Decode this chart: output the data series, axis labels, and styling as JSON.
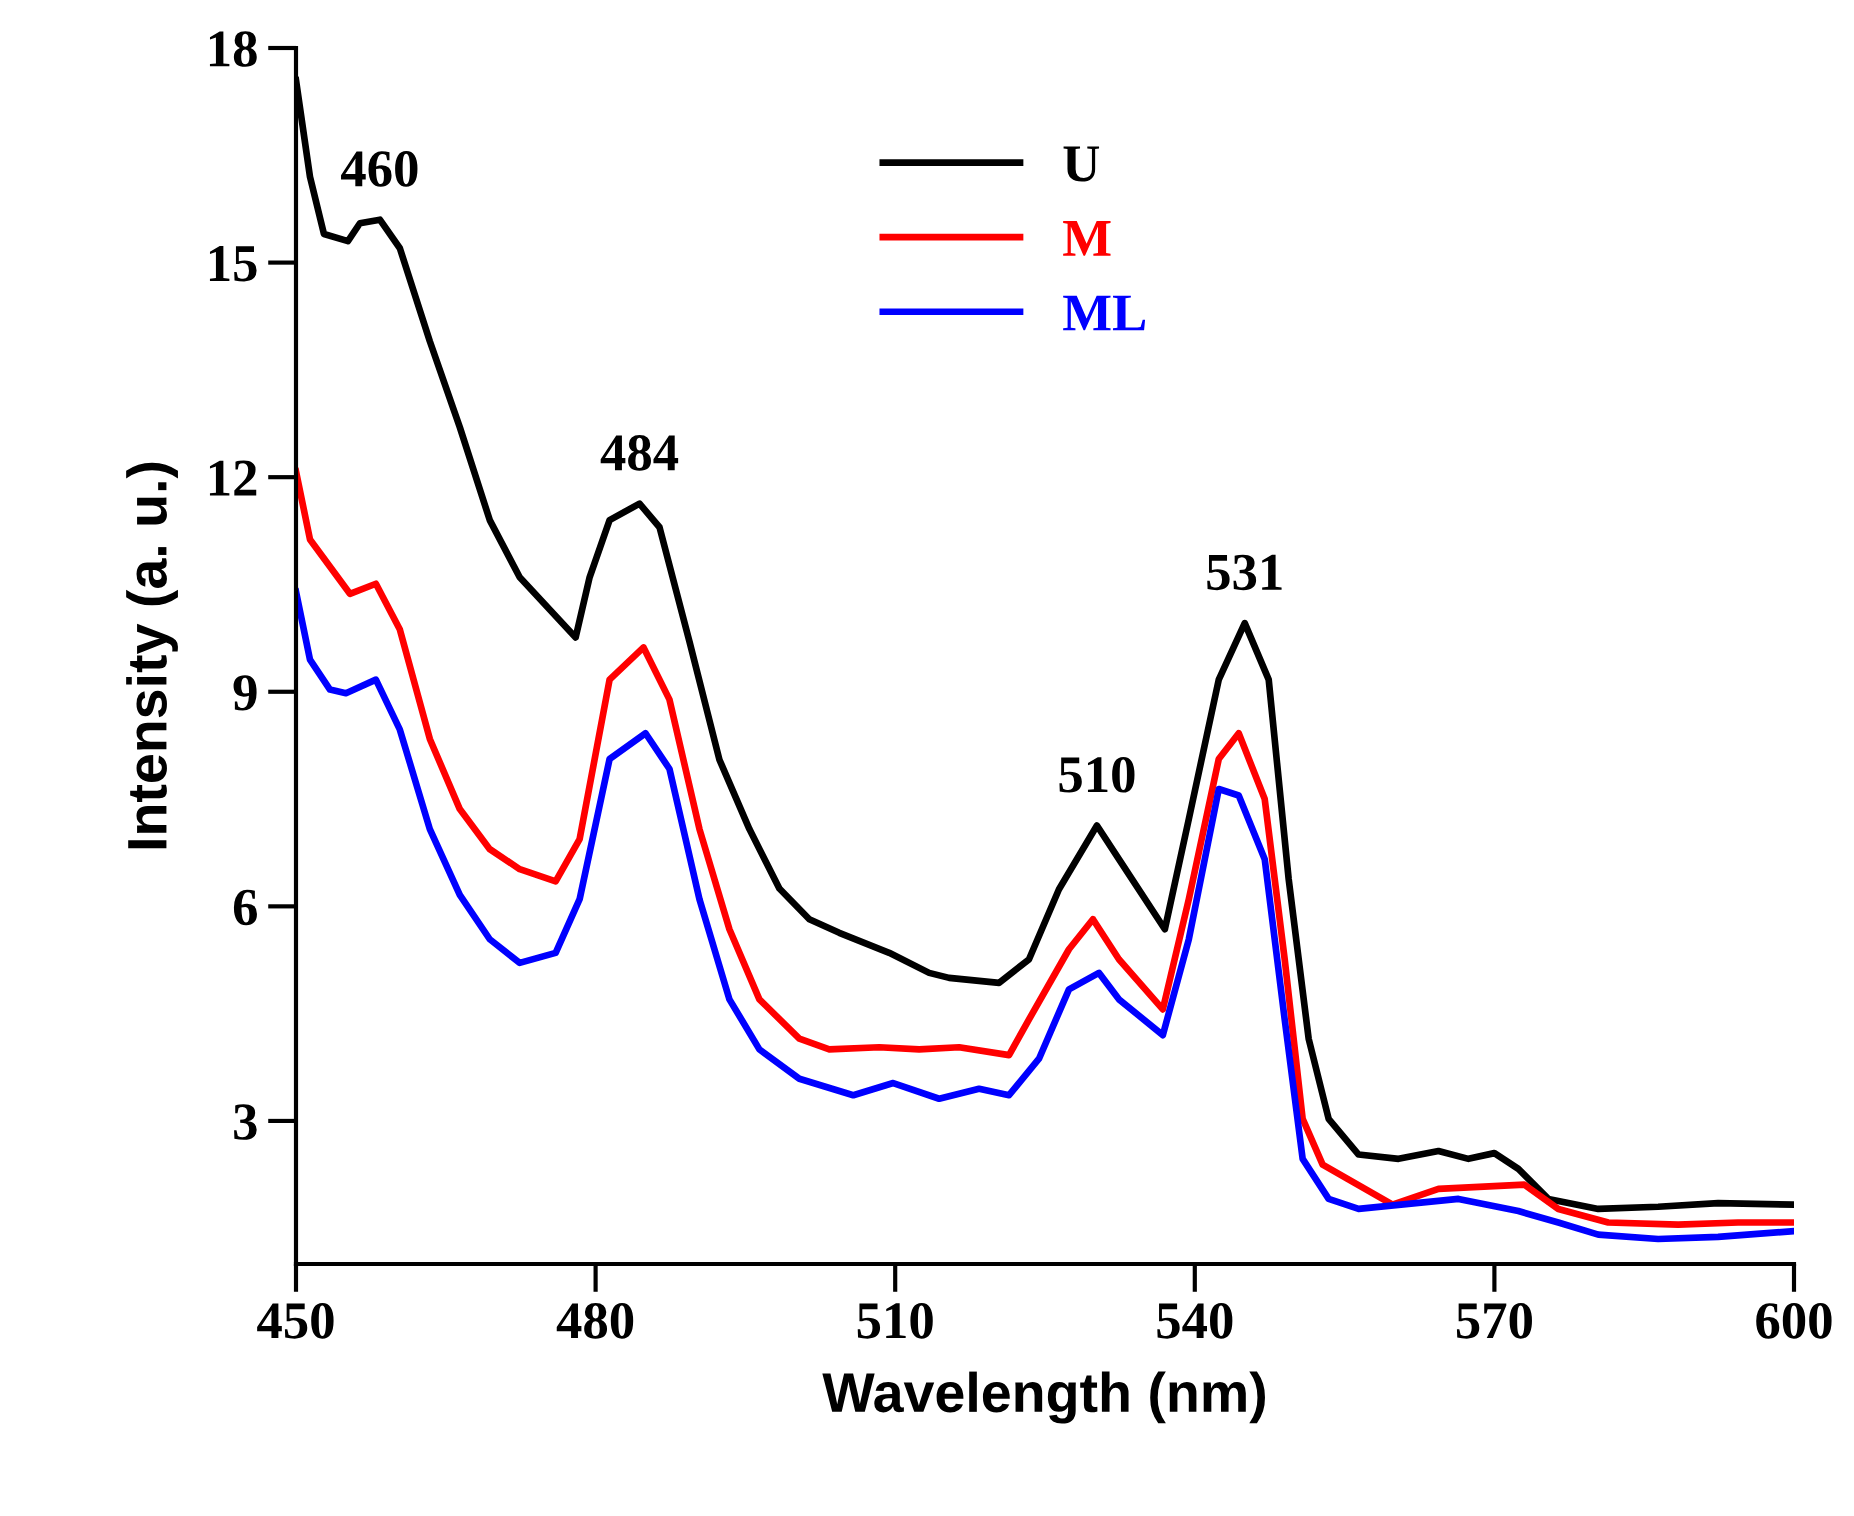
{
  "chart_data": {
    "type": "line",
    "xlabel": "Wavelength (nm)",
    "ylabel": "Intensity (a. u.)",
    "xlim": [
      450,
      600
    ],
    "xticks": [
      450,
      480,
      510,
      540,
      570,
      600
    ],
    "ylim": [
      1,
      18
    ],
    "yticks": [
      3,
      6,
      9,
      12,
      15,
      18
    ],
    "grid": false,
    "legend": "top",
    "line_style": "solid",
    "marker": "none",
    "series": [
      {
        "name": "U",
        "color": "#000000",
        "x": [
          450,
          451.4,
          452.8,
          455.2,
          456.4,
          458.4,
          460.4,
          463.4,
          466.4,
          469.4,
          472.4,
          478,
          479.4,
          481.4,
          484.4,
          486.4,
          489.4,
          492.4,
          495.4,
          498.4,
          501.4,
          504.4,
          509.4,
          513.4,
          515.4,
          520.4,
          523.4,
          526.4,
          530.2,
          532.4,
          537,
          539.4,
          542.4,
          545,
          547.4,
          549.4,
          551.4,
          553.4,
          556.4,
          560.4,
          564.4,
          567.4,
          570,
          572.4,
          575.4,
          580.4,
          586.4,
          592.4,
          600
        ],
        "values": [
          17.55,
          16.2,
          15.4,
          15.3,
          15.55,
          15.6,
          15.2,
          13.9,
          12.7,
          11.4,
          10.6,
          9.76,
          10.6,
          11.4,
          11.63,
          11.3,
          9.7,
          8.05,
          7.08,
          6.25,
          5.82,
          5.63,
          5.35,
          5.07,
          5.0,
          4.93,
          5.26,
          6.24,
          7.13,
          6.66,
          5.68,
          7.22,
          9.17,
          9.96,
          9.17,
          6.38,
          4.15,
          3.03,
          2.53,
          2.47,
          2.58,
          2.47,
          2.55,
          2.33,
          1.91,
          1.77,
          1.8,
          1.85,
          1.83
        ]
      },
      {
        "name": "M",
        "color": "#ff0000",
        "x": [
          450,
          451.4,
          455.4,
          458,
          460.4,
          463.4,
          466.4,
          469.4,
          472.4,
          476,
          478.4,
          481.4,
          484.8,
          487.4,
          490.4,
          493.4,
          496.4,
          500.4,
          503.4,
          508.4,
          512.4,
          516.4,
          521.4,
          523.4,
          527.4,
          529.8,
          532.4,
          536.8,
          539.4,
          542.4,
          544.4,
          547,
          549,
          550.8,
          552.8,
          559.8,
          564.4,
          573,
          576.4,
          581.4,
          588.4,
          594.4,
          600
        ],
        "values": [
          12.08,
          11.13,
          10.37,
          10.51,
          9.87,
          8.34,
          7.36,
          6.8,
          6.52,
          6.35,
          6.94,
          9.17,
          9.62,
          8.89,
          7.08,
          5.68,
          4.7,
          4.15,
          4.0,
          4.03,
          4.0,
          4.03,
          3.92,
          4.42,
          5.4,
          5.82,
          5.26,
          4.56,
          6.1,
          8.06,
          8.42,
          7.5,
          5.26,
          3.03,
          2.39,
          1.83,
          2.05,
          2.11,
          1.77,
          1.58,
          1.55,
          1.58,
          1.58
        ]
      },
      {
        "name": "ML",
        "color": "#0000ff",
        "x": [
          450,
          451.4,
          453.4,
          455,
          458,
          460.4,
          463.4,
          466.4,
          469.4,
          472.4,
          476,
          478.4,
          481.4,
          485,
          487.4,
          490.4,
          493.4,
          496.4,
          500.4,
          505.8,
          509.8,
          514.4,
          518.4,
          521.4,
          524.4,
          527.4,
          530.4,
          532.4,
          536.8,
          539.4,
          542.4,
          544.4,
          547,
          549,
          550.8,
          553.4,
          556.4,
          566.4,
          572.4,
          576.4,
          580.4,
          586.4,
          592.4,
          600
        ],
        "values": [
          10.4,
          9.45,
          9.03,
          8.98,
          9.17,
          8.47,
          7.08,
          6.16,
          5.54,
          5.21,
          5.35,
          6.1,
          8.06,
          8.42,
          7.92,
          6.1,
          4.7,
          4.0,
          3.59,
          3.36,
          3.53,
          3.31,
          3.45,
          3.36,
          3.87,
          4.84,
          5.07,
          4.7,
          4.2,
          5.54,
          7.64,
          7.55,
          6.66,
          4.42,
          2.47,
          1.91,
          1.77,
          1.91,
          1.74,
          1.58,
          1.41,
          1.35,
          1.38,
          1.46
        ]
      }
    ],
    "annotations": [
      {
        "text": "460",
        "x": 458.4,
        "y": 15.6
      },
      {
        "text": "484",
        "x": 484.4,
        "y": 11.63
      },
      {
        "text": "510",
        "x": 530.2,
        "y": 7.13
      },
      {
        "text": "531",
        "x": 545,
        "y": 9.96
      }
    ]
  }
}
